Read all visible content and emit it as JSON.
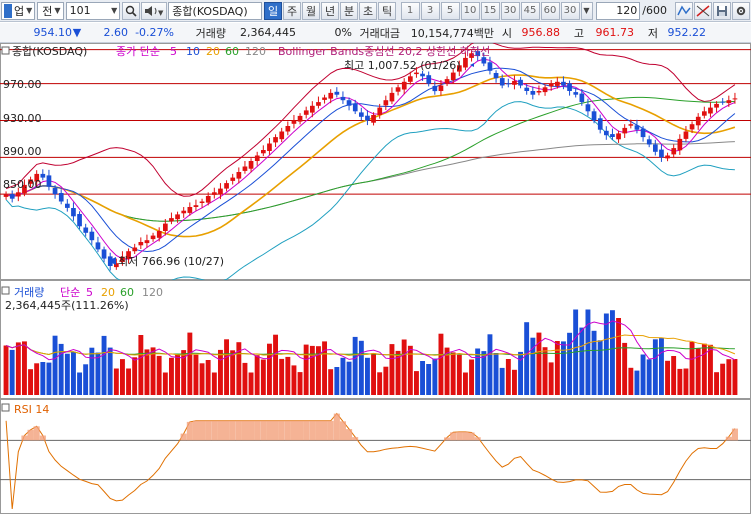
{
  "toolbar": {
    "market_selector": "업",
    "market_caret": "▼",
    "whole_label": "전",
    "code_value": "101",
    "index_name": "종합(KOSDAQ)",
    "periods": [
      "일",
      "주",
      "월",
      "년",
      "분",
      "초",
      "틱"
    ],
    "active_period": "일",
    "minute_intervals": [
      "1",
      "3",
      "5",
      "10",
      "15",
      "30",
      "45",
      "60",
      "30"
    ],
    "count_value": "120",
    "count_total": "/600"
  },
  "info": {
    "price": "954.10",
    "change_arrow": "▼",
    "change": "2.60",
    "change_pct": "-0.27%",
    "volume_label": "거래량",
    "volume": "2,364,445",
    "volume_pct": "0%",
    "amount_label": "거래대금",
    "amount": "10,154,774백만",
    "open_label": "시",
    "open": "956.88",
    "high_label": "고",
    "high": "961.73",
    "low_label": "저",
    "low": "952.22"
  },
  "colors": {
    "up": "#e01010",
    "down": "#1a4fd6",
    "ma5": "#cc00cc",
    "ma10": "#1a4fd6",
    "ma20": "#e8a000",
    "ma60": "#2aa02a",
    "ma120": "#888888",
    "bollinger": "#c00030"
  },
  "price_panel": {
    "legend": {
      "name": "종합(KOSDAQ)",
      "ma_label": "종가 단순",
      "ma_periods": [
        "5",
        "10",
        "20",
        "60",
        "120"
      ],
      "bollinger": "Bollinger Bands중심선 20,2 상한선 하한선"
    },
    "y_labels": [
      "970.00",
      "930.00",
      "890.00",
      "850.00"
    ],
    "high_annotation": "최고 1,007.52 (01/26)",
    "low_annotation": "최저 766.96 (10/27)"
  },
  "volume_panel": {
    "legend": {
      "name": "거래량",
      "ma_label": "단순",
      "ma_periods": [
        "5",
        "20",
        "60",
        "120"
      ]
    },
    "current": "2,364,445주(111.26%)"
  },
  "rsi_panel": {
    "legend": "RSI 14"
  },
  "chart_data": {
    "type": "candlestick",
    "closes": [
      850,
      845,
      852,
      860,
      866,
      872,
      868,
      858,
      850,
      842,
      835,
      826,
      815,
      808,
      800,
      790,
      780,
      772,
      775,
      782,
      788,
      792,
      798,
      800,
      805,
      810,
      818,
      824,
      828,
      832,
      836,
      838,
      842,
      848,
      852,
      856,
      862,
      868,
      874,
      880,
      886,
      892,
      898,
      905,
      912,
      918,
      924,
      930,
      935,
      941,
      946,
      950,
      955,
      960,
      958,
      952,
      946,
      940,
      934,
      930,
      936,
      944,
      952,
      960,
      966,
      972,
      978,
      982,
      978,
      970,
      962,
      968,
      975,
      982,
      990,
      998,
      1003,
      1000,
      992,
      984,
      976,
      968,
      970,
      973,
      968,
      962,
      958,
      962,
      966,
      970,
      972,
      968,
      962,
      958,
      950,
      940,
      930,
      920,
      914,
      912,
      916,
      922,
      926,
      920,
      912,
      904,
      896,
      890,
      892,
      900,
      910,
      918,
      926,
      934,
      940,
      944,
      948,
      950,
      952,
      954
    ],
    "ylim_price": [
      760,
      1012
    ],
    "volume_unit": "shares",
    "rsi_ylim": [
      0,
      100
    ]
  }
}
